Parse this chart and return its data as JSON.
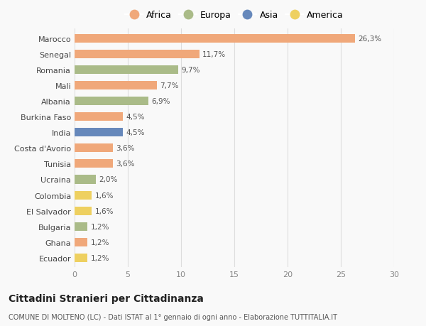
{
  "countries": [
    "Marocco",
    "Senegal",
    "Romania",
    "Mali",
    "Albania",
    "Burkina Faso",
    "India",
    "Costa d'Avorio",
    "Tunisia",
    "Ucraina",
    "Colombia",
    "El Salvador",
    "Bulgaria",
    "Ghana",
    "Ecuador"
  ],
  "values": [
    26.3,
    11.7,
    9.7,
    7.7,
    6.9,
    4.5,
    4.5,
    3.6,
    3.6,
    2.0,
    1.6,
    1.6,
    1.2,
    1.2,
    1.2
  ],
  "labels": [
    "26,3%",
    "11,7%",
    "9,7%",
    "7,7%",
    "6,9%",
    "4,5%",
    "4,5%",
    "3,6%",
    "3,6%",
    "2,0%",
    "1,6%",
    "1,6%",
    "1,2%",
    "1,2%",
    "1,2%"
  ],
  "continents": [
    "Africa",
    "Africa",
    "Europa",
    "Africa",
    "Europa",
    "Africa",
    "Asia",
    "Africa",
    "Africa",
    "Europa",
    "America",
    "America",
    "Europa",
    "Africa",
    "America"
  ],
  "continent_colors": {
    "Africa": "#F0A87A",
    "Europa": "#AABB88",
    "Asia": "#6688BB",
    "America": "#EED060"
  },
  "legend_order": [
    "Africa",
    "Europa",
    "Asia",
    "America"
  ],
  "title": "Cittadini Stranieri per Cittadinanza",
  "subtitle": "COMUNE DI MOLTENO (LC) - Dati ISTAT al 1° gennaio di ogni anno - Elaborazione TUTTITALIA.IT",
  "xlim": [
    0,
    30
  ],
  "xticks": [
    0,
    5,
    10,
    15,
    20,
    25,
    30
  ],
  "background_color": "#f9f9f9"
}
